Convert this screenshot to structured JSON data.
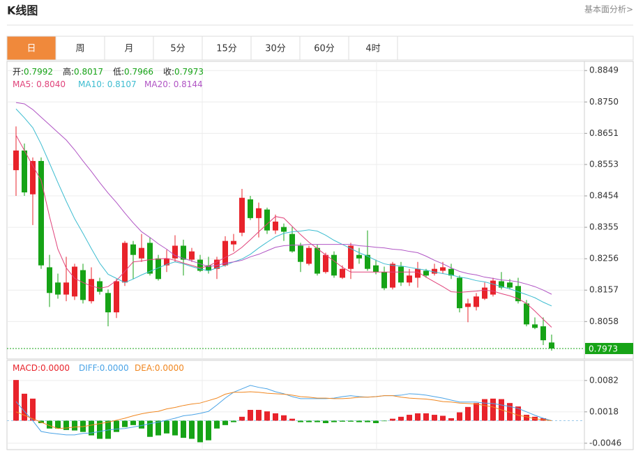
{
  "header": {
    "title": "K线图",
    "link": "基本面分析>"
  },
  "tabs": [
    "日",
    "周",
    "月",
    "5分",
    "15分",
    "30分",
    "60分",
    "4时"
  ],
  "active_tab": 0,
  "chart_data": [
    {
      "type": "candlestick",
      "ylim": [
        0.794,
        0.8878
      ],
      "yticks": [
        0.8849,
        {
          "value": 0.875,
          "label": "0.8750"
        },
        0.8651,
        0.8553,
        0.8454,
        0.8355,
        0.8256,
        0.8157,
        0.8058
      ],
      "grid": true,
      "up_color": "#e8232b",
      "down_color": "#16a316",
      "ohlc_legend": [
        {
          "label": "开:",
          "value": "0.7992"
        },
        {
          "label": "高:",
          "value": "0.8017"
        },
        {
          "label": "低:",
          "value": "0.7966"
        },
        {
          "label": "收:",
          "value": "0.7973"
        }
      ],
      "last_price": 0.7973,
      "ohlc": {
        "open": [
          0.8535,
          0.8597,
          0.8459,
          0.8564,
          0.8229,
          0.8181,
          0.8143,
          0.8137,
          0.822,
          0.8122,
          0.8185,
          0.8148,
          0.8087,
          0.8181,
          0.8301,
          0.8257,
          0.8306,
          0.8257,
          0.8235,
          0.8257,
          0.8297,
          0.8253,
          0.8253,
          0.8235,
          0.8224,
          0.8235,
          0.8301,
          0.8338,
          0.8443,
          0.8384,
          0.8411,
          0.8345,
          0.8356,
          0.8334,
          0.8297,
          0.824,
          0.829,
          0.8214,
          0.8268,
          0.8196,
          0.8224,
          0.8268,
          0.8268,
          0.8235,
          0.8214,
          0.8165,
          0.8231,
          0.8181,
          0.8196,
          0.8218,
          0.8209,
          0.8218,
          0.8224,
          0.8196,
          0.8104,
          0.8104,
          0.813,
          0.8143,
          0.8185,
          0.8181,
          0.817,
          0.8115,
          0.8049,
          0.8043,
          0.7992
        ],
        "high": [
          0.8673,
          0.8619,
          0.8575,
          0.8575,
          0.8268,
          0.8209,
          0.8262,
          0.824,
          0.824,
          0.8229,
          0.8196,
          0.8159,
          0.8192,
          0.8312,
          0.8312,
          0.8334,
          0.8323,
          0.8268,
          0.8284,
          0.833,
          0.8316,
          0.829,
          0.8268,
          0.8262,
          0.8262,
          0.8327,
          0.8334,
          0.8476,
          0.8454,
          0.8433,
          0.8417,
          0.8395,
          0.8367,
          0.8356,
          0.8306,
          0.8297,
          0.8301,
          0.8275,
          0.8279,
          0.8235,
          0.8306,
          0.829,
          0.8345,
          0.8253,
          0.8231,
          0.8246,
          0.8246,
          0.8224,
          0.8246,
          0.8224,
          0.824,
          0.8246,
          0.824,
          0.8203,
          0.813,
          0.8148,
          0.8181,
          0.8196,
          0.8214,
          0.8192,
          0.8196,
          0.8126,
          0.8071,
          0.8071,
          0.8017
        ],
        "low": [
          0.8454,
          0.8454,
          0.8362,
          0.8224,
          0.8104,
          0.813,
          0.8122,
          0.8126,
          0.8115,
          0.8115,
          0.8143,
          0.8043,
          0.8069,
          0.817,
          0.8192,
          0.8246,
          0.8203,
          0.8187,
          0.8214,
          0.8246,
          0.8203,
          0.8246,
          0.8214,
          0.8209,
          0.8192,
          0.8231,
          0.8279,
          0.8327,
          0.8378,
          0.8323,
          0.8334,
          0.8334,
          0.8312,
          0.8275,
          0.8214,
          0.8235,
          0.8203,
          0.8209,
          0.8196,
          0.8192,
          0.8192,
          0.824,
          0.8218,
          0.8207,
          0.8157,
          0.8159,
          0.817,
          0.817,
          0.8165,
          0.8196,
          0.8203,
          0.8209,
          0.8192,
          0.8087,
          0.8056,
          0.8093,
          0.8126,
          0.8137,
          0.8159,
          0.8159,
          0.8115,
          0.8043,
          0.8034,
          0.7984,
          0.7966
        ],
        "close": [
          0.8597,
          0.8465,
          0.8564,
          0.8235,
          0.8148,
          0.8143,
          0.8181,
          0.8231,
          0.8126,
          0.8192,
          0.8152,
          0.8087,
          0.8185,
          0.8306,
          0.8268,
          0.829,
          0.8209,
          0.8192,
          0.8257,
          0.8297,
          0.8253,
          0.8279,
          0.8218,
          0.8218,
          0.8253,
          0.8312,
          0.8312,
          0.8448,
          0.8384,
          0.8415,
          0.8345,
          0.8373,
          0.8341,
          0.8279,
          0.8246,
          0.829,
          0.8209,
          0.8268,
          0.8203,
          0.8224,
          0.8297,
          0.8257,
          0.8224,
          0.8214,
          0.8163,
          0.824,
          0.8181,
          0.8203,
          0.8224,
          0.8203,
          0.8224,
          0.8229,
          0.8203,
          0.81,
          0.8115,
          0.8137,
          0.8165,
          0.8187,
          0.8165,
          0.8165,
          0.8122,
          0.8049,
          0.8038,
          0.7999,
          0.7973
        ]
      },
      "series": [
        {
          "name": "MA5: ",
          "value_label": "0.8040",
          "color": "#e0427a",
          "values": [
            0.8645,
            0.8597,
            0.8549,
            0.8503,
            0.8389,
            0.8286,
            0.8227,
            0.8194,
            0.8181,
            0.817,
            0.8163,
            0.8168,
            0.8187,
            0.8216,
            0.8246,
            0.8249,
            0.8253,
            0.8255,
            0.8257,
            0.8251,
            0.8242,
            0.8235,
            0.8227,
            0.8233,
            0.8246,
            0.826,
            0.8273,
            0.8292,
            0.8316,
            0.8341,
            0.8365,
            0.8389,
            0.8384,
            0.8358,
            0.8332,
            0.8308,
            0.8288,
            0.8268,
            0.8249,
            0.8229,
            0.8214,
            0.8214,
            0.8214,
            0.8214,
            0.8214,
            0.8214,
            0.8214,
            0.8214,
            0.8214,
            0.8198,
            0.8183,
            0.8168,
            0.8152,
            0.815,
            0.8152,
            0.8154,
            0.8157,
            0.8154,
            0.8146,
            0.8139,
            0.813,
            0.8115,
            0.8091,
            0.8065,
            0.804
          ]
        },
        {
          "name": "MA10: ",
          "value_label": "0.8107",
          "color": "#3cbcd0",
          "values": [
            0.8728,
            0.87,
            0.8669,
            0.8617,
            0.8557,
            0.8496,
            0.8437,
            0.8382,
            0.8336,
            0.8288,
            0.8242,
            0.8207,
            0.8194,
            0.8181,
            0.8192,
            0.8205,
            0.8216,
            0.8227,
            0.8238,
            0.8246,
            0.824,
            0.8231,
            0.8224,
            0.8218,
            0.8227,
            0.8235,
            0.8246,
            0.8255,
            0.827,
            0.829,
            0.8308,
            0.8325,
            0.8336,
            0.8341,
            0.8343,
            0.8347,
            0.8343,
            0.833,
            0.8314,
            0.8301,
            0.8288,
            0.8275,
            0.8264,
            0.8251,
            0.824,
            0.8235,
            0.8233,
            0.8229,
            0.8224,
            0.822,
            0.8214,
            0.8209,
            0.8205,
            0.8198,
            0.8194,
            0.8187,
            0.8183,
            0.8176,
            0.8168,
            0.8161,
            0.8152,
            0.8143,
            0.8133,
            0.8119,
            0.8107
          ]
        },
        {
          "name": "MA20: ",
          "value_label": "0.8144",
          "color": "#b054c4",
          "values": [
            0.8748,
            0.8744,
            0.8726,
            0.8702,
            0.8678,
            0.8654,
            0.863,
            0.8599,
            0.8564,
            0.8531,
            0.8496,
            0.8463,
            0.8433,
            0.84,
            0.8369,
            0.8341,
            0.8323,
            0.8303,
            0.8286,
            0.8266,
            0.8257,
            0.8249,
            0.824,
            0.8231,
            0.8235,
            0.8242,
            0.8246,
            0.8251,
            0.8262,
            0.827,
            0.8281,
            0.8292,
            0.8297,
            0.8299,
            0.8299,
            0.8301,
            0.8301,
            0.8301,
            0.8301,
            0.8301,
            0.8301,
            0.8297,
            0.8295,
            0.8292,
            0.829,
            0.8286,
            0.8284,
            0.8279,
            0.8275,
            0.8264,
            0.8251,
            0.824,
            0.8227,
            0.8216,
            0.8209,
            0.8205,
            0.8198,
            0.8194,
            0.8189,
            0.8187,
            0.8183,
            0.8176,
            0.8168,
            0.8157,
            0.8144
          ]
        }
      ]
    },
    {
      "type": "macd",
      "ylim": [
        -0.0059,
        0.0123
      ],
      "yticks": [
        0.0082,
        0.0018,
        -0.0046
      ],
      "grid": true,
      "histogram": {
        "name": "MACD:",
        "value_label": "0.0000",
        "color": "#e8232b",
        "up_color": "#e8232b",
        "down_color": "#16a316",
        "values": [
          0.0083,
          0.0055,
          0.0045,
          -0.0005,
          -0.0016,
          -0.0016,
          -0.0019,
          -0.002,
          -0.0023,
          -0.003,
          -0.0037,
          -0.0037,
          -0.0023,
          -0.0013,
          -0.0009,
          -0.0016,
          -0.0033,
          -0.003,
          -0.0026,
          -0.003,
          -0.0035,
          -0.0037,
          -0.0044,
          -0.004,
          -0.0016,
          -0.0009,
          -0.0003,
          0.0008,
          0.0022,
          0.0022,
          0.0019,
          0.0015,
          0.0011,
          0.0004,
          -0.0003,
          -0.0003,
          -0.0003,
          -0.0005,
          -0.0003,
          -0.0002,
          -0.0002,
          -0.0003,
          -0.0003,
          -0.0005,
          -0.0001,
          0.0004,
          0.0008,
          0.0012,
          0.0015,
          0.0015,
          0.0012,
          0.001,
          0.0005,
          0.0017,
          0.0028,
          0.0036,
          0.0044,
          0.0045,
          0.0044,
          0.0036,
          0.0029,
          0.0012,
          0.0008,
          0.0005,
          0.0
        ]
      },
      "series": [
        {
          "name": "DIFF:",
          "value_label": "0.0000",
          "color": "#4aa3e6",
          "values": [
            0.0039,
            0.0019,
            0.0,
            -0.0022,
            -0.0025,
            -0.0027,
            -0.0029,
            -0.0029,
            -0.0026,
            -0.0025,
            -0.0022,
            -0.0019,
            -0.0017,
            -0.0016,
            -0.0013,
            -0.001,
            -0.0006,
            -0.0003,
            0.0001,
            0.0005,
            0.001,
            0.0012,
            0.0015,
            0.0019,
            0.0032,
            0.0046,
            0.0058,
            0.0065,
            0.0072,
            0.0068,
            0.0065,
            0.0059,
            0.0055,
            0.0049,
            0.0045,
            0.0045,
            0.0045,
            0.0045,
            0.0046,
            0.0049,
            0.0051,
            0.0049,
            0.0048,
            0.0049,
            0.0051,
            0.0051,
            0.0052,
            0.0055,
            0.0054,
            0.0052,
            0.0049,
            0.0046,
            0.0042,
            0.0038,
            0.0038,
            0.0038,
            0.0036,
            0.0035,
            0.0032,
            0.0029,
            0.0025,
            0.0018,
            0.0011,
            0.0005,
            0.0
          ]
        },
        {
          "name": "DEA:",
          "value_label": "0.0000",
          "color": "#f0861f",
          "values": [
            0.0018,
            0.0011,
            0.0004,
            -0.0003,
            -0.001,
            -0.0016,
            -0.0015,
            -0.0013,
            -0.0012,
            -0.0009,
            -0.0006,
            -0.0003,
            0.0001,
            0.0005,
            0.001,
            0.0014,
            0.0017,
            0.0019,
            0.0024,
            0.0027,
            0.0031,
            0.0034,
            0.0036,
            0.0041,
            0.0046,
            0.0054,
            0.0058,
            0.0058,
            0.0059,
            0.0058,
            0.0056,
            0.0055,
            0.0054,
            0.0052,
            0.0049,
            0.0048,
            0.0046,
            0.0046,
            0.0045,
            0.0045,
            0.0046,
            0.0048,
            0.0048,
            0.0049,
            0.0051,
            0.0051,
            0.0048,
            0.0046,
            0.0045,
            0.0044,
            0.0042,
            0.0039,
            0.0038,
            0.0036,
            0.0035,
            0.0034,
            0.0031,
            0.0028,
            0.0022,
            0.0017,
            0.0011,
            0.0008,
            0.0004,
            0.0002,
            0.0
          ]
        }
      ]
    }
  ]
}
